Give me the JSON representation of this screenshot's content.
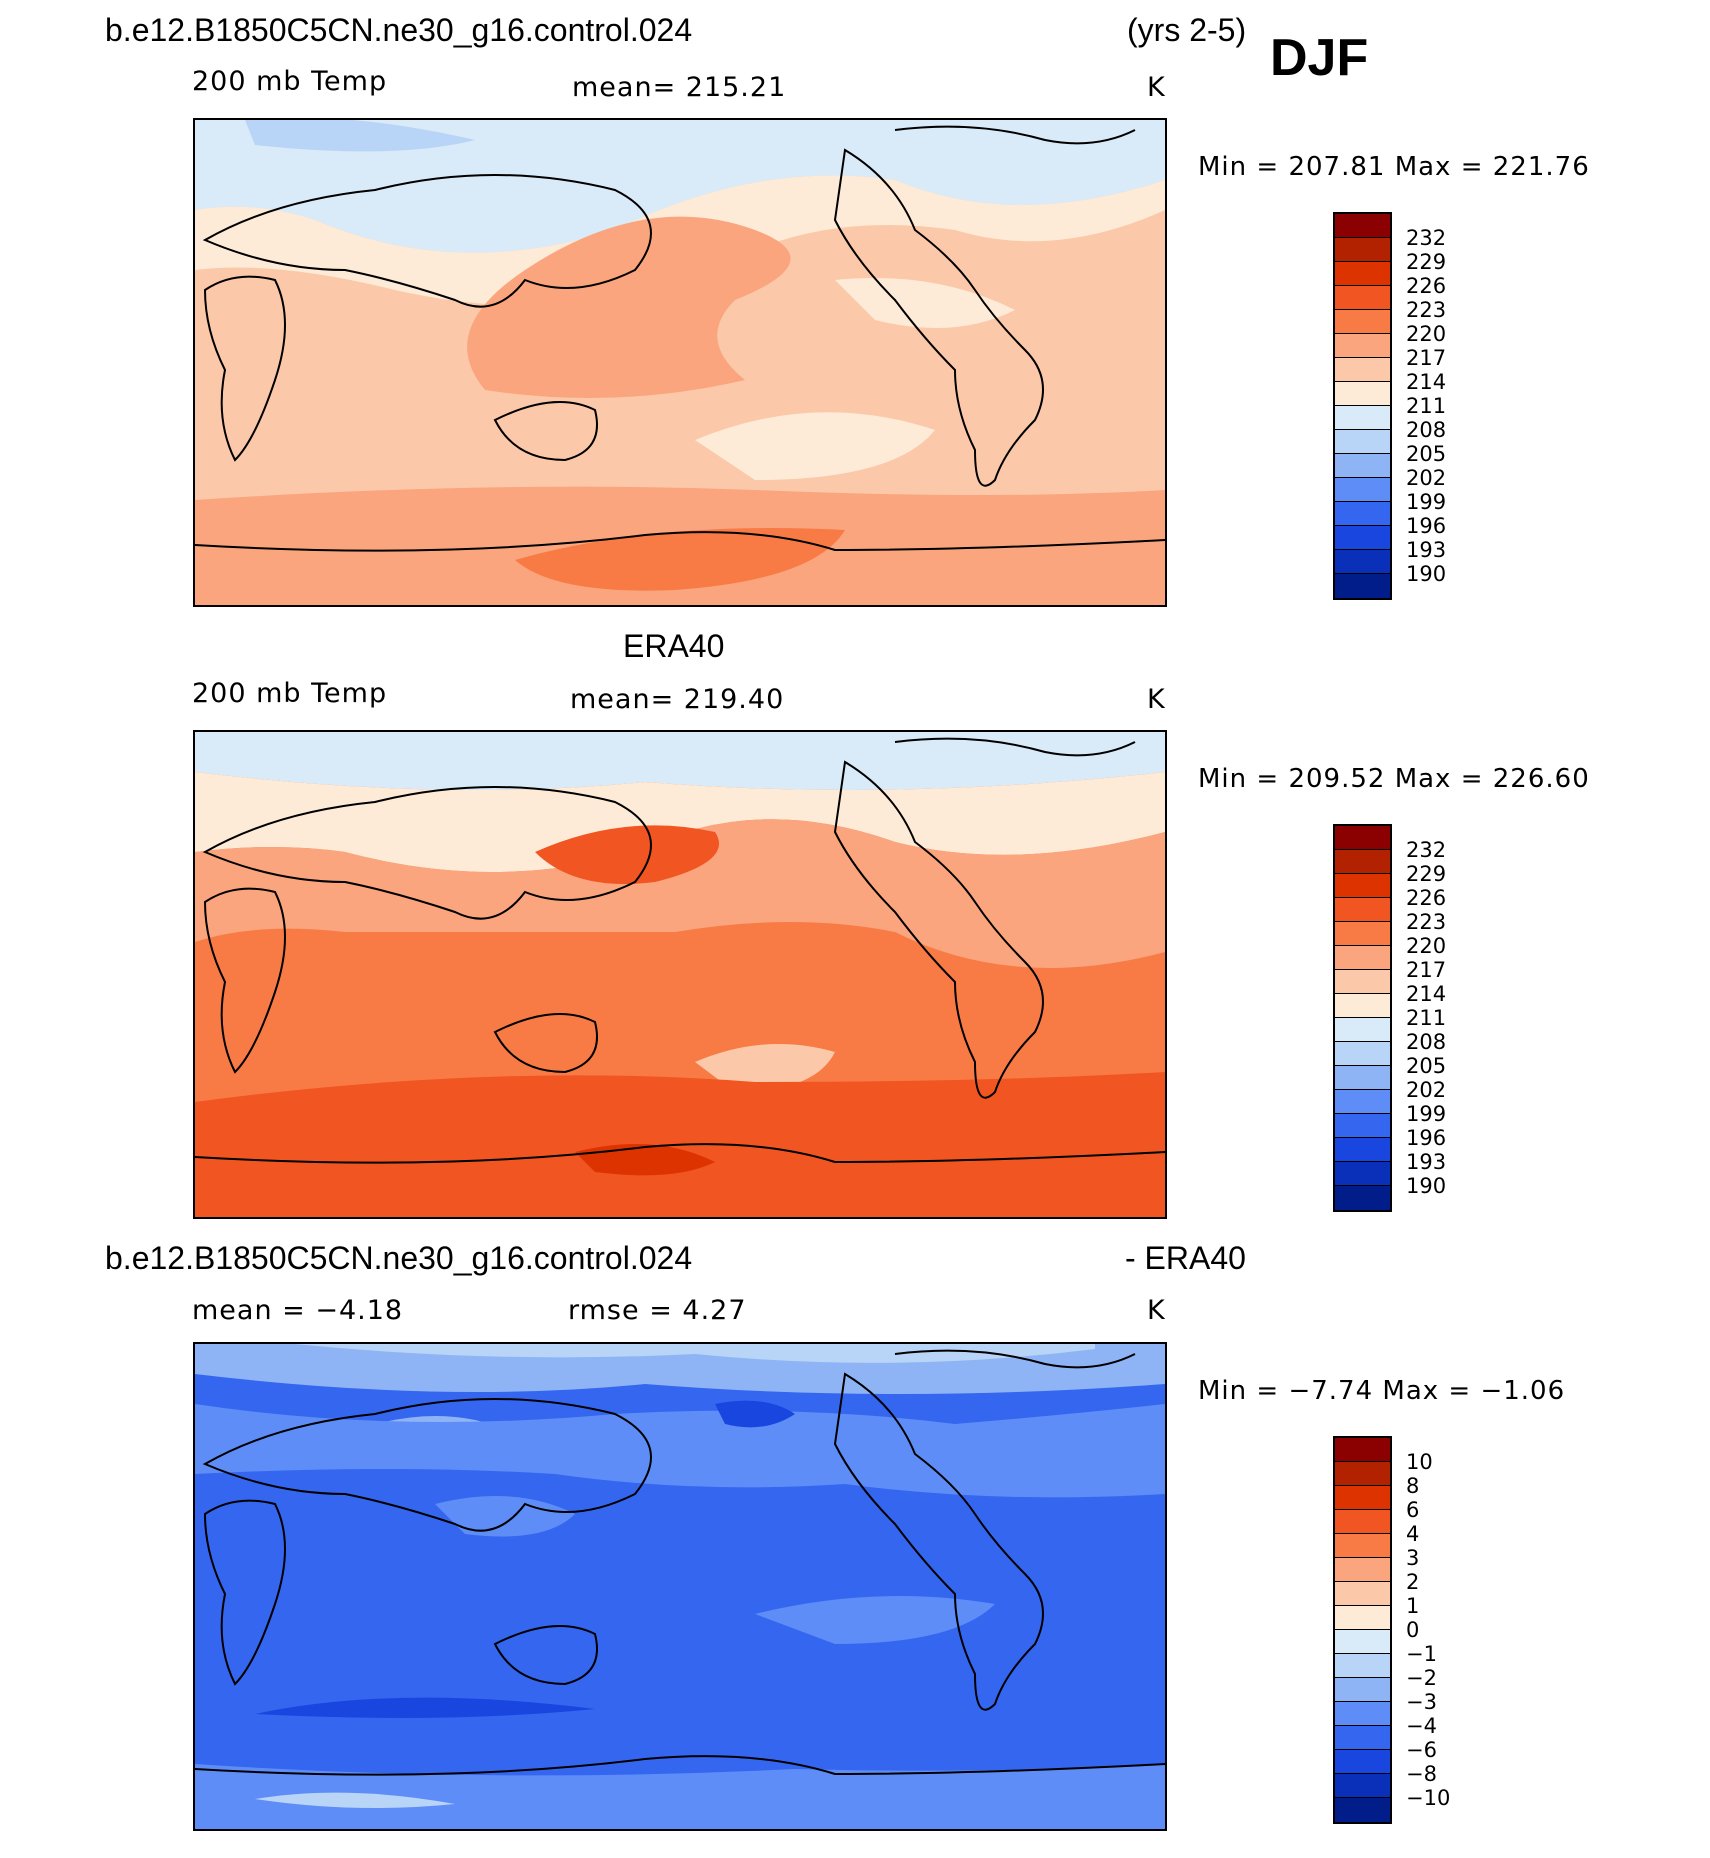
{
  "header": {
    "case_name": "b.e12.B1850C5CN.ne30_g16.control.024",
    "years": "(yrs 2-5)",
    "season": "DJF"
  },
  "panels": [
    {
      "id": "model",
      "title": "",
      "variable": "200 mb Temp",
      "stat": "mean=  215.21",
      "units": "K",
      "minmax": "Min  =  207.81  Max  =  221.76",
      "colorbar": {
        "labels": [
          "232",
          "229",
          "226",
          "223",
          "220",
          "217",
          "214",
          "211",
          "208",
          "205",
          "202",
          "199",
          "196",
          "193",
          "190"
        ],
        "colors": [
          "#8b0000",
          "#b22200",
          "#dd3300",
          "#f05522",
          "#f87b46",
          "#faa57d",
          "#fbc9a9",
          "#fdebd8",
          "#d9eaf9",
          "#b8d4f6",
          "#8fb4f6",
          "#5e8df7",
          "#3566f0",
          "#1a46e0",
          "#0a2fb8",
          "#001d8a"
        ]
      },
      "dominant": "#fbc9a9"
    },
    {
      "id": "obs",
      "title": "ERA40",
      "variable": "200 mb Temp",
      "stat": "mean=  219.40",
      "units": "K",
      "minmax": "Min  =  209.52  Max  =  226.60",
      "colorbar": {
        "labels": [
          "232",
          "229",
          "226",
          "223",
          "220",
          "217",
          "214",
          "211",
          "208",
          "205",
          "202",
          "199",
          "196",
          "193",
          "190"
        ],
        "colors": [
          "#8b0000",
          "#b22200",
          "#dd3300",
          "#f05522",
          "#f87b46",
          "#faa57d",
          "#fbc9a9",
          "#fdebd8",
          "#d9eaf9",
          "#b8d4f6",
          "#8fb4f6",
          "#5e8df7",
          "#3566f0",
          "#1a46e0",
          "#0a2fb8",
          "#001d8a"
        ]
      },
      "dominant": "#f87b46"
    },
    {
      "id": "diff",
      "title_left": "b.e12.B1850C5CN.ne30_g16.control.024",
      "title_right": "- ERA40",
      "stat": "mean  =     −4.18",
      "stat2": "rmse  =     4.27",
      "units": "K",
      "minmax": "Min  =    −7.74  Max  =    −1.06",
      "colorbar": {
        "labels": [
          "10",
          "8",
          "6",
          "4",
          "3",
          "2",
          "1",
          "0",
          "−1",
          "−2",
          "−3",
          "−4",
          "−6",
          "−8",
          "−10"
        ],
        "colors": [
          "#8b0000",
          "#b22200",
          "#dd3300",
          "#f05522",
          "#f87b46",
          "#faa57d",
          "#fbc9a9",
          "#fdebd8",
          "#d9eaf9",
          "#b8d4f6",
          "#8fb4f6",
          "#5e8df7",
          "#3566f0",
          "#1a46e0",
          "#0a2fb8",
          "#001d8a"
        ]
      },
      "dominant": "#3566f0"
    }
  ]
}
